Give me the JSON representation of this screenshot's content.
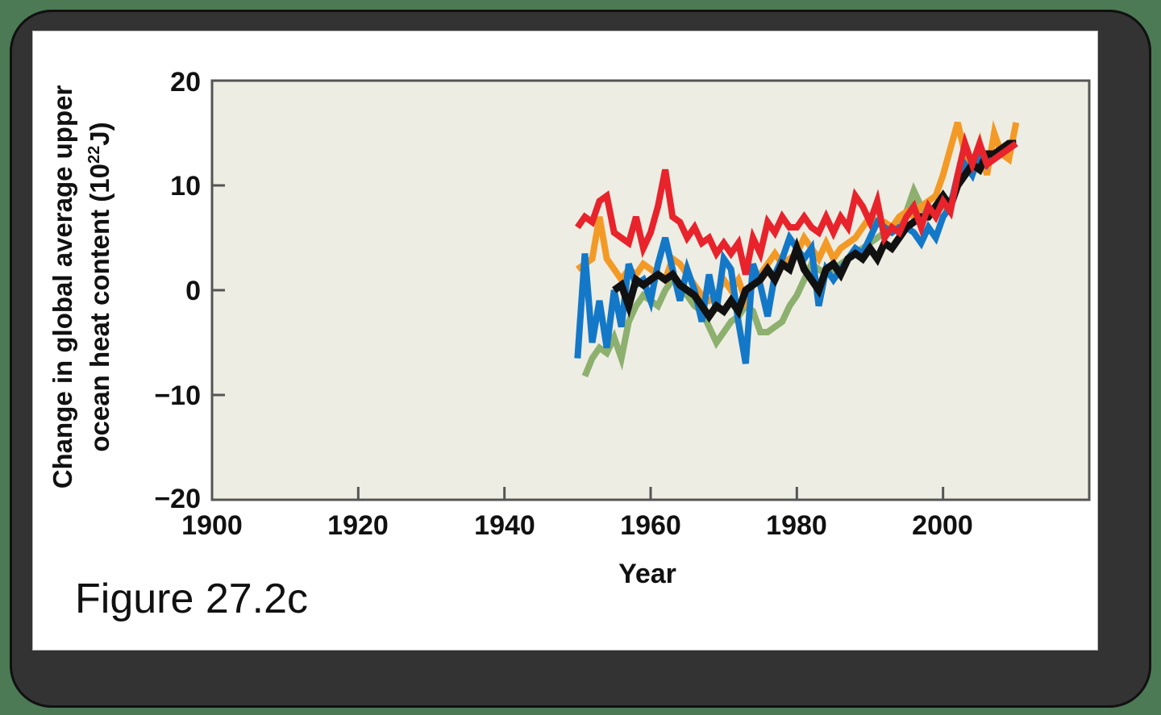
{
  "figure": {
    "caption": "Figure 27.2c",
    "colors": {
      "outer_background": "#4c7a55",
      "frame": "#333333",
      "card": "#ffffff",
      "plot_background": "#eeede3",
      "axis": "#555555"
    }
  },
  "chart_data": {
    "type": "line",
    "title": "",
    "xlabel": "Year",
    "ylabel": "Change in global average upper ocean heat content (10^22 J)",
    "ylabel_line1": "Change in global average upper",
    "ylabel_line2_prefix": "ocean heat content (10",
    "ylabel_exponent": "22",
    "ylabel_line2_suffix": "J)",
    "xlim": [
      1900,
      2020
    ],
    "ylim": [
      -20,
      20
    ],
    "x_ticks": [
      "1900",
      "1920",
      "1940",
      "1960",
      "1980",
      "2000"
    ],
    "y_ticks": [
      "20",
      "10",
      "0",
      "−10",
      "−20"
    ],
    "grid": false,
    "legend": null,
    "series": [
      {
        "name": "green",
        "color": "#8db06f",
        "x": [
          1951,
          1952,
          1953,
          1954,
          1955,
          1956,
          1957,
          1958,
          1959,
          1960,
          1961,
          1962,
          1963,
          1964,
          1965,
          1966,
          1967,
          1968,
          1969,
          1970,
          1971,
          1972,
          1973,
          1974,
          1975,
          1976,
          1977,
          1978,
          1979,
          1980,
          1981,
          1982,
          1983,
          1984,
          1985,
          1986,
          1987,
          1988,
          1989,
          1990,
          1991,
          1992,
          1993,
          1994,
          1995,
          1996,
          1997,
          1998,
          1999,
          2000,
          2001,
          2002,
          2003,
          2004,
          2005,
          2006,
          2007,
          2008,
          2009,
          2010
        ],
        "y": [
          -8.2,
          -6.5,
          -5.5,
          -6,
          -4.5,
          -6.5,
          -3,
          -1.5,
          -0.5,
          -1,
          -1.5,
          0,
          1,
          0.5,
          -0.5,
          -1.5,
          -2,
          -3.5,
          -5,
          -4,
          -3,
          -2.5,
          -1.5,
          -2,
          -4,
          -4,
          -3.5,
          -3,
          -1.5,
          -0.5,
          1,
          2.5,
          2,
          1.5,
          2,
          2.5,
          3,
          3.5,
          4,
          4.5,
          5,
          5.5,
          6,
          6.5,
          7.5,
          9.5,
          8,
          7,
          7.5,
          8,
          8.5,
          10,
          11,
          11.5,
          12,
          12.5,
          13,
          13,
          13.5,
          14
        ]
      },
      {
        "name": "orange",
        "color": "#f39a26",
        "x": [
          1950,
          1951,
          1952,
          1953,
          1954,
          1955,
          1956,
          1957,
          1958,
          1959,
          1960,
          1961,
          1962,
          1963,
          1964,
          1965,
          1966,
          1967,
          1968,
          1969,
          1970,
          1971,
          1972,
          1973,
          1974,
          1975,
          1976,
          1977,
          1978,
          1979,
          1980,
          1981,
          1982,
          1983,
          1984,
          1985,
          1986,
          1987,
          1988,
          1989,
          1990,
          1991,
          1992,
          1993,
          1994,
          1995,
          1996,
          1997,
          1998,
          1999,
          2000,
          2001,
          2002,
          2003,
          2004,
          2005,
          2006,
          2007,
          2008,
          2009,
          2010
        ],
        "y": [
          2,
          2.5,
          3,
          7,
          3,
          2,
          1,
          2,
          1.5,
          2.5,
          2,
          1.5,
          1,
          3,
          2.5,
          1.5,
          0.5,
          -0.5,
          -1,
          -0.5,
          1,
          0,
          1,
          -1,
          0.5,
          1.5,
          2.5,
          3.5,
          2.5,
          3,
          3.5,
          5,
          4,
          3,
          4.5,
          3,
          4,
          4.5,
          5,
          6,
          7,
          6.5,
          6.5,
          6,
          7,
          7.5,
          7,
          8,
          8.5,
          9,
          11,
          13.5,
          16,
          13,
          12,
          14,
          11,
          15,
          13,
          12.5,
          16
        ]
      },
      {
        "name": "blue",
        "color": "#1478c8",
        "x": [
          1950,
          1951,
          1952,
          1953,
          1954,
          1955,
          1956,
          1957,
          1958,
          1959,
          1960,
          1961,
          1962,
          1963,
          1964,
          1965,
          1966,
          1967,
          1968,
          1969,
          1970,
          1971,
          1972,
          1973,
          1974,
          1975,
          1976,
          1977,
          1978,
          1979,
          1980,
          1981,
          1982,
          1983,
          1984,
          1985,
          1986,
          1987,
          1988,
          1989,
          1990,
          1991,
          1992,
          1993,
          1994,
          1995,
          1996,
          1997,
          1998,
          1999,
          2000,
          2001,
          2002,
          2003,
          2004,
          2005,
          2006,
          2007,
          2008,
          2009,
          2010
        ],
        "y": [
          -6.5,
          3.5,
          -5,
          -1,
          -5.5,
          0,
          -3.5,
          2.5,
          0.5,
          1,
          -1,
          2.5,
          5,
          2,
          -1,
          2,
          0,
          -3,
          1.5,
          -2,
          3,
          2,
          -3,
          -7,
          2.5,
          0.5,
          -2.5,
          1.5,
          3,
          5,
          4,
          3,
          4,
          -1.5,
          2,
          1,
          2,
          3,
          4,
          3.5,
          5,
          6.5,
          6,
          5.5,
          6,
          6,
          5.5,
          4.5,
          6,
          5,
          7,
          8,
          11,
          12,
          11,
          13,
          12,
          13,
          13,
          13.5,
          14
        ]
      },
      {
        "name": "black",
        "color": "#111111",
        "x": [
          1955,
          1956,
          1957,
          1958,
          1959,
          1960,
          1961,
          1962,
          1963,
          1964,
          1965,
          1966,
          1967,
          1968,
          1969,
          1970,
          1971,
          1972,
          1973,
          1974,
          1975,
          1976,
          1977,
          1978,
          1979,
          1980,
          1981,
          1982,
          1983,
          1984,
          1985,
          1986,
          1987,
          1988,
          1989,
          1990,
          1991,
          1992,
          1993,
          1994,
          1995,
          1996,
          1997,
          1998,
          1999,
          2000,
          2001,
          2002,
          2003,
          2004,
          2005,
          2006,
          2007,
          2008,
          2009,
          2010
        ],
        "y": [
          0,
          0.5,
          -1.5,
          1,
          0.5,
          1,
          1.5,
          1,
          1.5,
          0.5,
          0,
          -0.5,
          -1.5,
          -2.5,
          -1.5,
          -2,
          -1,
          -2,
          0,
          0.5,
          1,
          2,
          1,
          2.5,
          2,
          4,
          2,
          1,
          0,
          2,
          2.5,
          1.5,
          3,
          3.5,
          3,
          4,
          3,
          4.5,
          4,
          5,
          6,
          6.5,
          7,
          7,
          8,
          9,
          8,
          10,
          11,
          12,
          11.5,
          13,
          13,
          13.5,
          14,
          14
        ]
      },
      {
        "name": "red",
        "color": "#e8232b",
        "x": [
          1950,
          1951,
          1952,
          1953,
          1954,
          1955,
          1956,
          1957,
          1958,
          1959,
          1960,
          1961,
          1962,
          1963,
          1964,
          1965,
          1966,
          1967,
          1968,
          1969,
          1970,
          1971,
          1972,
          1973,
          1974,
          1975,
          1976,
          1977,
          1978,
          1979,
          1980,
          1981,
          1982,
          1983,
          1984,
          1985,
          1986,
          1987,
          1988,
          1989,
          1990,
          1991,
          1992,
          1993,
          1994,
          1995,
          1996,
          1997,
          1998,
          1999,
          2000,
          2001,
          2002,
          2003,
          2004,
          2005,
          2006,
          2007,
          2008,
          2009,
          2010
        ],
        "y": [
          6,
          7,
          6.5,
          8.5,
          9,
          5.5,
          5,
          4.5,
          7,
          4,
          5.5,
          8,
          11.5,
          7,
          6.5,
          5,
          6,
          4.5,
          5,
          3.5,
          4.5,
          3.5,
          4.5,
          1.5,
          5,
          3.5,
          6.5,
          5.5,
          7,
          6,
          6,
          7,
          6,
          5.5,
          7,
          5.5,
          7,
          6,
          9,
          8,
          6.5,
          8.5,
          5,
          6,
          5.5,
          7,
          8,
          6,
          8,
          7,
          8.5,
          7.5,
          11,
          14,
          12,
          14,
          12,
          12.5,
          13,
          13.5,
          14
        ]
      }
    ]
  }
}
